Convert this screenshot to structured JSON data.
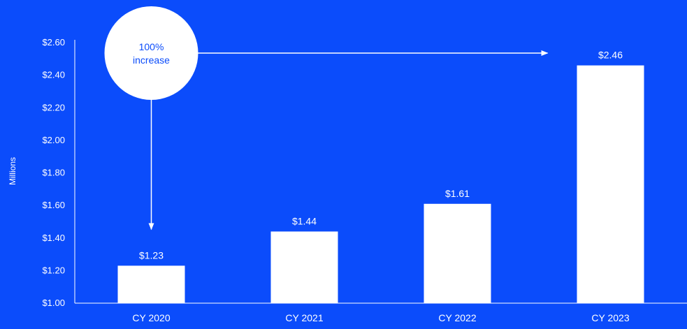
{
  "chart_data": {
    "type": "bar",
    "title": "",
    "xlabel": "",
    "ylabel": "Millions",
    "categories": [
      "CY 2020",
      "CY 2021",
      "CY 2022",
      "CY 2023"
    ],
    "values": [
      1.23,
      1.44,
      1.61,
      2.46
    ],
    "value_labels": [
      "$1.23",
      "$1.44",
      "$1.61",
      "$2.46"
    ],
    "ylim": [
      1.0,
      2.6
    ],
    "yticks": [
      1.0,
      1.2,
      1.4,
      1.6,
      1.8,
      2.0,
      2.2,
      2.4,
      2.6
    ],
    "ytick_labels": [
      "$1.00",
      "$1.20",
      "$1.40",
      "$1.60",
      "$1.80",
      "$2.00",
      "$2.20",
      "$2.40",
      "$2.60"
    ],
    "grid": false,
    "legend": "none",
    "annotation": {
      "line1": "100%",
      "line2": "increase",
      "from_category": "CY 2020",
      "to_category": "CY 2023"
    }
  },
  "colors": {
    "background": "#0b4cfb",
    "bar": "#ffffff",
    "text": "#ffffff",
    "callout_text": "#0b4cfb"
  }
}
